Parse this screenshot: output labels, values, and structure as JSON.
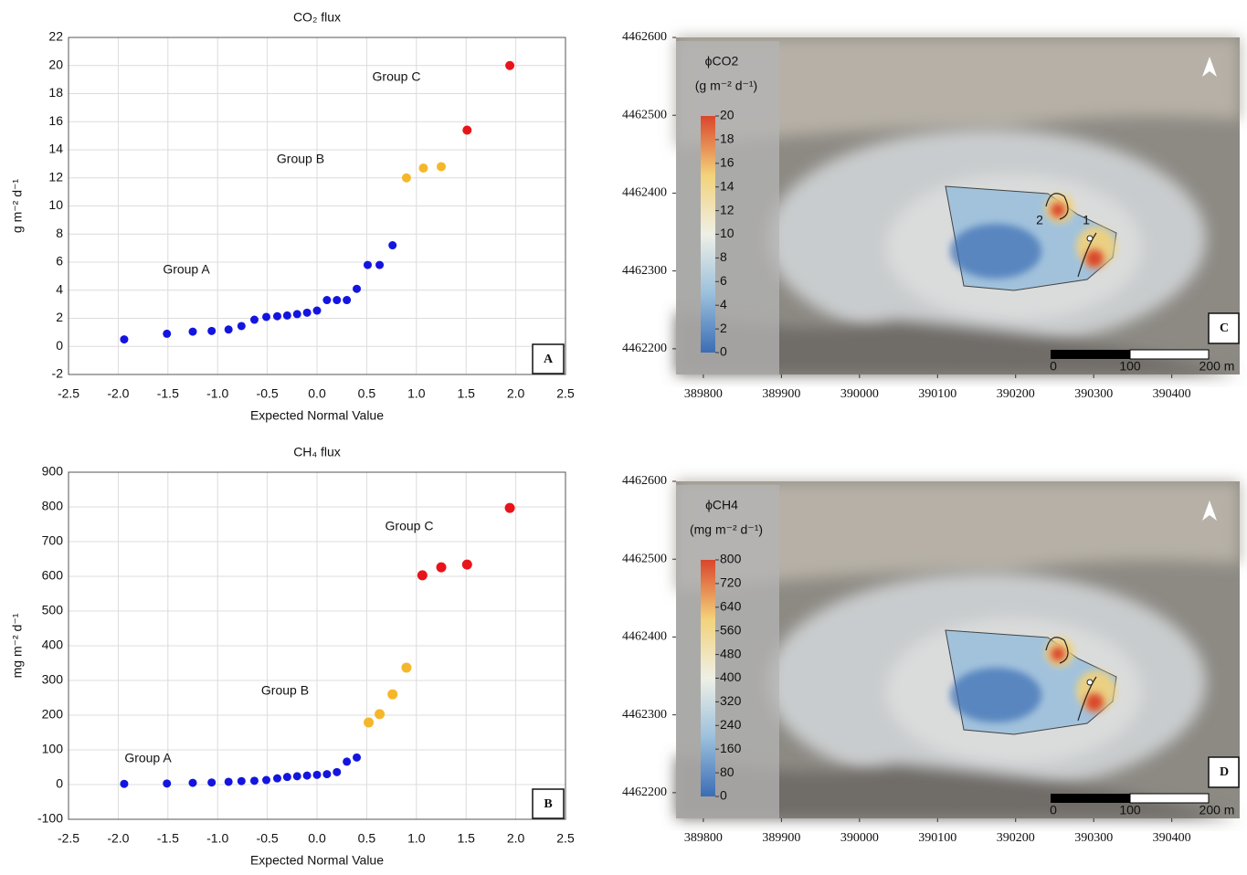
{
  "chart_data": [
    {
      "type": "scatter",
      "panel": "A",
      "title": "CO₂ flux",
      "xlabel": "Expected Normal Value",
      "ylabel": "g m⁻² d⁻¹",
      "xlim": [
        -2.5,
        2.5
      ],
      "ylim": [
        -2,
        22
      ],
      "xticks": [
        -2.5,
        {
          "value": -2,
          "label": "-2.0"
        },
        -1.5,
        {
          "value": -1,
          "label": "-1.0"
        },
        -0.5,
        {
          "value": 0,
          "label": "0.0"
        },
        0.5,
        {
          "value": 1,
          "label": "1.0"
        },
        1.5,
        {
          "value": 2,
          "label": "2.0"
        },
        2.5
      ],
      "yticks": [
        -2,
        0,
        2,
        4,
        6,
        8,
        10,
        12,
        14,
        16,
        18,
        20,
        22
      ],
      "grid": true,
      "series": [
        {
          "name": "Group A",
          "color": "#1414e0",
          "x": [
            -1.94,
            -1.51,
            -1.25,
            -1.06,
            -0.89,
            -0.76,
            -0.63,
            -0.51,
            -0.4,
            -0.3,
            -0.2,
            -0.1,
            0,
            0.1,
            0.2,
            0.3,
            0.4,
            0.51,
            0.63,
            0.76
          ],
          "values": [
            0.5,
            0.9,
            1.05,
            1.1,
            1.2,
            1.45,
            1.9,
            2.1,
            2.15,
            2.2,
            2.3,
            2.4,
            2.55,
            3.3,
            3.3,
            3.3,
            4.1,
            5.8,
            5.8,
            7.2
          ]
        },
        {
          "name": "Group B",
          "color": "#f5b72a",
          "x": [
            0.9,
            1.07,
            1.25
          ],
          "values": [
            12.0,
            12.7,
            12.8
          ]
        },
        {
          "name": "Group C",
          "color": "#e8141a",
          "x": [
            1.51,
            1.94
          ],
          "values": [
            15.4,
            20.0
          ]
        }
      ]
    },
    {
      "type": "scatter",
      "panel": "B",
      "title": "CH₄ flux",
      "xlabel": "Expected Normal Value",
      "ylabel": "mg m⁻² d⁻¹",
      "xlim": [
        -2.5,
        2.5
      ],
      "ylim": [
        -100,
        900
      ],
      "xticks": [
        -2.5,
        {
          "value": -2,
          "label": "-2.0"
        },
        -1.5,
        {
          "value": -1,
          "label": "-1.0"
        },
        -0.5,
        {
          "value": 0,
          "label": "0.0"
        },
        0.5,
        {
          "value": 1,
          "label": "1.0"
        },
        1.5,
        {
          "value": 2,
          "label": "2.0"
        },
        2.5
      ],
      "yticks": [
        -100,
        0,
        100,
        200,
        300,
        400,
        500,
        600,
        700,
        800,
        900
      ],
      "grid": true,
      "series": [
        {
          "name": "Group A",
          "color": "#1414e0",
          "x": [
            -1.94,
            -1.51,
            -1.25,
            -1.06,
            -0.89,
            -0.76,
            -0.63,
            -0.51,
            -0.4,
            -0.3,
            -0.2,
            -0.1,
            0,
            0.1,
            0.2,
            0.3,
            0.4
          ],
          "values": [
            2,
            3,
            5,
            6,
            8,
            10,
            11,
            13,
            18,
            22,
            24,
            26,
            28,
            30,
            36,
            66,
            78
          ]
        },
        {
          "name": "Group B",
          "color": "#f5b72a",
          "x": [
            0.52,
            0.63,
            0.76,
            0.9
          ],
          "values": [
            179,
            203,
            260,
            337
          ]
        },
        {
          "name": "Group C",
          "color": "#e8141a",
          "x": [
            1.06,
            1.25,
            1.51,
            1.94
          ],
          "values": [
            603,
            626,
            634,
            797
          ]
        }
      ]
    },
    {
      "type": "map",
      "panel": "C",
      "legend_title": "ϕCO2",
      "legend_units": "(g m⁻² d⁻¹)",
      "xlim": [
        389765,
        390487
      ],
      "ylim": [
        4462167,
        4462600
      ],
      "xticks": [
        389800,
        389900,
        390000,
        390100,
        390200,
        390300,
        390400
      ],
      "yticks": [
        4462200,
        4462300,
        4462400,
        4462500,
        4462600
      ],
      "colorbar_lim": [
        0,
        20
      ],
      "colorbar_ticks": [
        0,
        2,
        4,
        6,
        8,
        10,
        12,
        14,
        16,
        18,
        20
      ],
      "colors": [
        "#3b6db4",
        "#9cc0dc",
        "#eef0e6",
        "#f3d27a",
        "#d9462c"
      ],
      "annotations": [
        "1",
        "2"
      ],
      "scale_labels": [
        "0",
        "100",
        "200 m"
      ]
    },
    {
      "type": "map",
      "panel": "D",
      "legend_title": "ϕCH4",
      "legend_units": "(mg m⁻² d⁻¹)",
      "xlim": [
        389765,
        390487
      ],
      "ylim": [
        4462167,
        4462600
      ],
      "xticks": [
        389800,
        389900,
        390000,
        390100,
        390200,
        390300,
        390400
      ],
      "yticks": [
        4462200,
        4462300,
        4462400,
        4462500,
        4462600
      ],
      "colorbar_lim": [
        0,
        800
      ],
      "colorbar_ticks": [
        0,
        80,
        160,
        240,
        320,
        400,
        480,
        560,
        640,
        720,
        800
      ],
      "colors": [
        "#3b6db4",
        "#9cc0dc",
        "#eef0e6",
        "#f3d27a",
        "#d9462c"
      ],
      "annotations": [],
      "scale_labels": [
        "0",
        "100",
        "200 m"
      ]
    }
  ]
}
